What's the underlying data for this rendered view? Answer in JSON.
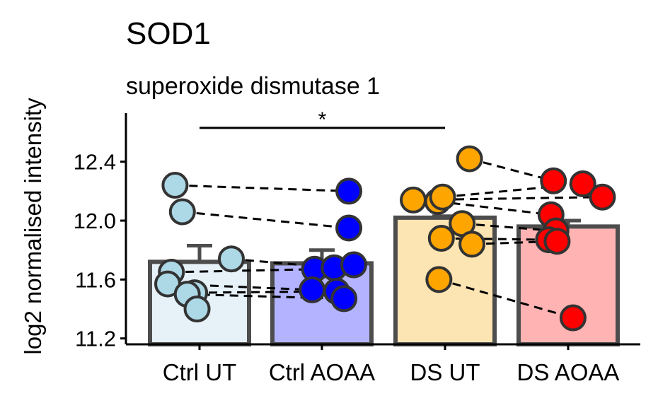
{
  "chart_data": {
    "type": "bar",
    "title": "SOD1",
    "subtitle": "superoxide dismutase 1",
    "xlabel": "",
    "ylabel": "log2 normalised intensity",
    "ylim": [
      11.16,
      12.73
    ],
    "yticks": [
      11.2,
      11.6,
      12.0,
      12.4
    ],
    "ytick_labels": [
      "11.2",
      "11.6",
      "12.0",
      "12.4"
    ],
    "categories": [
      "Ctrl UT",
      "Ctrl AOAA",
      "DS UT",
      "DS AOAA"
    ],
    "values": [
      11.72,
      11.71,
      12.02,
      11.96
    ],
    "errors": [
      0.11,
      0.09,
      0.01,
      0.04
    ],
    "bar_fill_colors": [
      "#e6f1f8",
      "#b3b3ff",
      "#fde5b3",
      "#ffb3b3"
    ],
    "bar_edge_color": "#4d4d4d",
    "point_colors": [
      "#add8e6",
      "#0000ff",
      "#ffa500",
      "#ff0000"
    ],
    "points": [
      [
        12.24,
        12.06,
        11.65,
        11.74,
        11.57,
        11.51,
        11.5,
        11.4
      ],
      [
        12.2,
        11.95,
        11.67,
        11.68,
        11.53,
        11.52,
        11.47,
        11.7
      ],
      [
        12.42,
        12.14,
        12.13,
        12.16,
        11.98,
        11.88,
        11.84,
        11.6
      ],
      [
        12.27,
        12.25,
        12.16,
        12.04,
        11.93,
        11.87,
        11.86,
        11.34
      ]
    ],
    "points_jitter": [
      [
        -0.2,
        -0.14,
        -0.23,
        0.26,
        -0.26,
        -0.04,
        -0.1,
        -0.02
      ],
      [
        0.22,
        0.22,
        -0.06,
        0.1,
        -0.08,
        0.12,
        0.18,
        0.26
      ],
      [
        0.2,
        -0.26,
        -0.06,
        -0.02,
        0.14,
        -0.03,
        0.22,
        -0.05
      ],
      [
        -0.12,
        0.12,
        0.28,
        -0.14,
        -0.1,
        -0.16,
        -0.09,
        0.04
      ]
    ],
    "pairs": [
      [
        0,
        1,
        [
          [
            0,
            0
          ],
          [
            1,
            1
          ],
          [
            2,
            2
          ],
          [
            3,
            3
          ],
          [
            4,
            4
          ],
          [
            5,
            5
          ],
          [
            6,
            6
          ]
        ]
      ],
      [
        2,
        3,
        [
          [
            0,
            0
          ],
          [
            1,
            2
          ],
          [
            2,
            3
          ],
          [
            3,
            1
          ],
          [
            4,
            4
          ],
          [
            5,
            5
          ],
          [
            6,
            6
          ],
          [
            7,
            7
          ]
        ]
      ]
    ],
    "significance": {
      "from": "Ctrl UT",
      "to": "DS UT",
      "label": "*",
      "y": 12.63
    },
    "grid": false,
    "legend": "none"
  }
}
